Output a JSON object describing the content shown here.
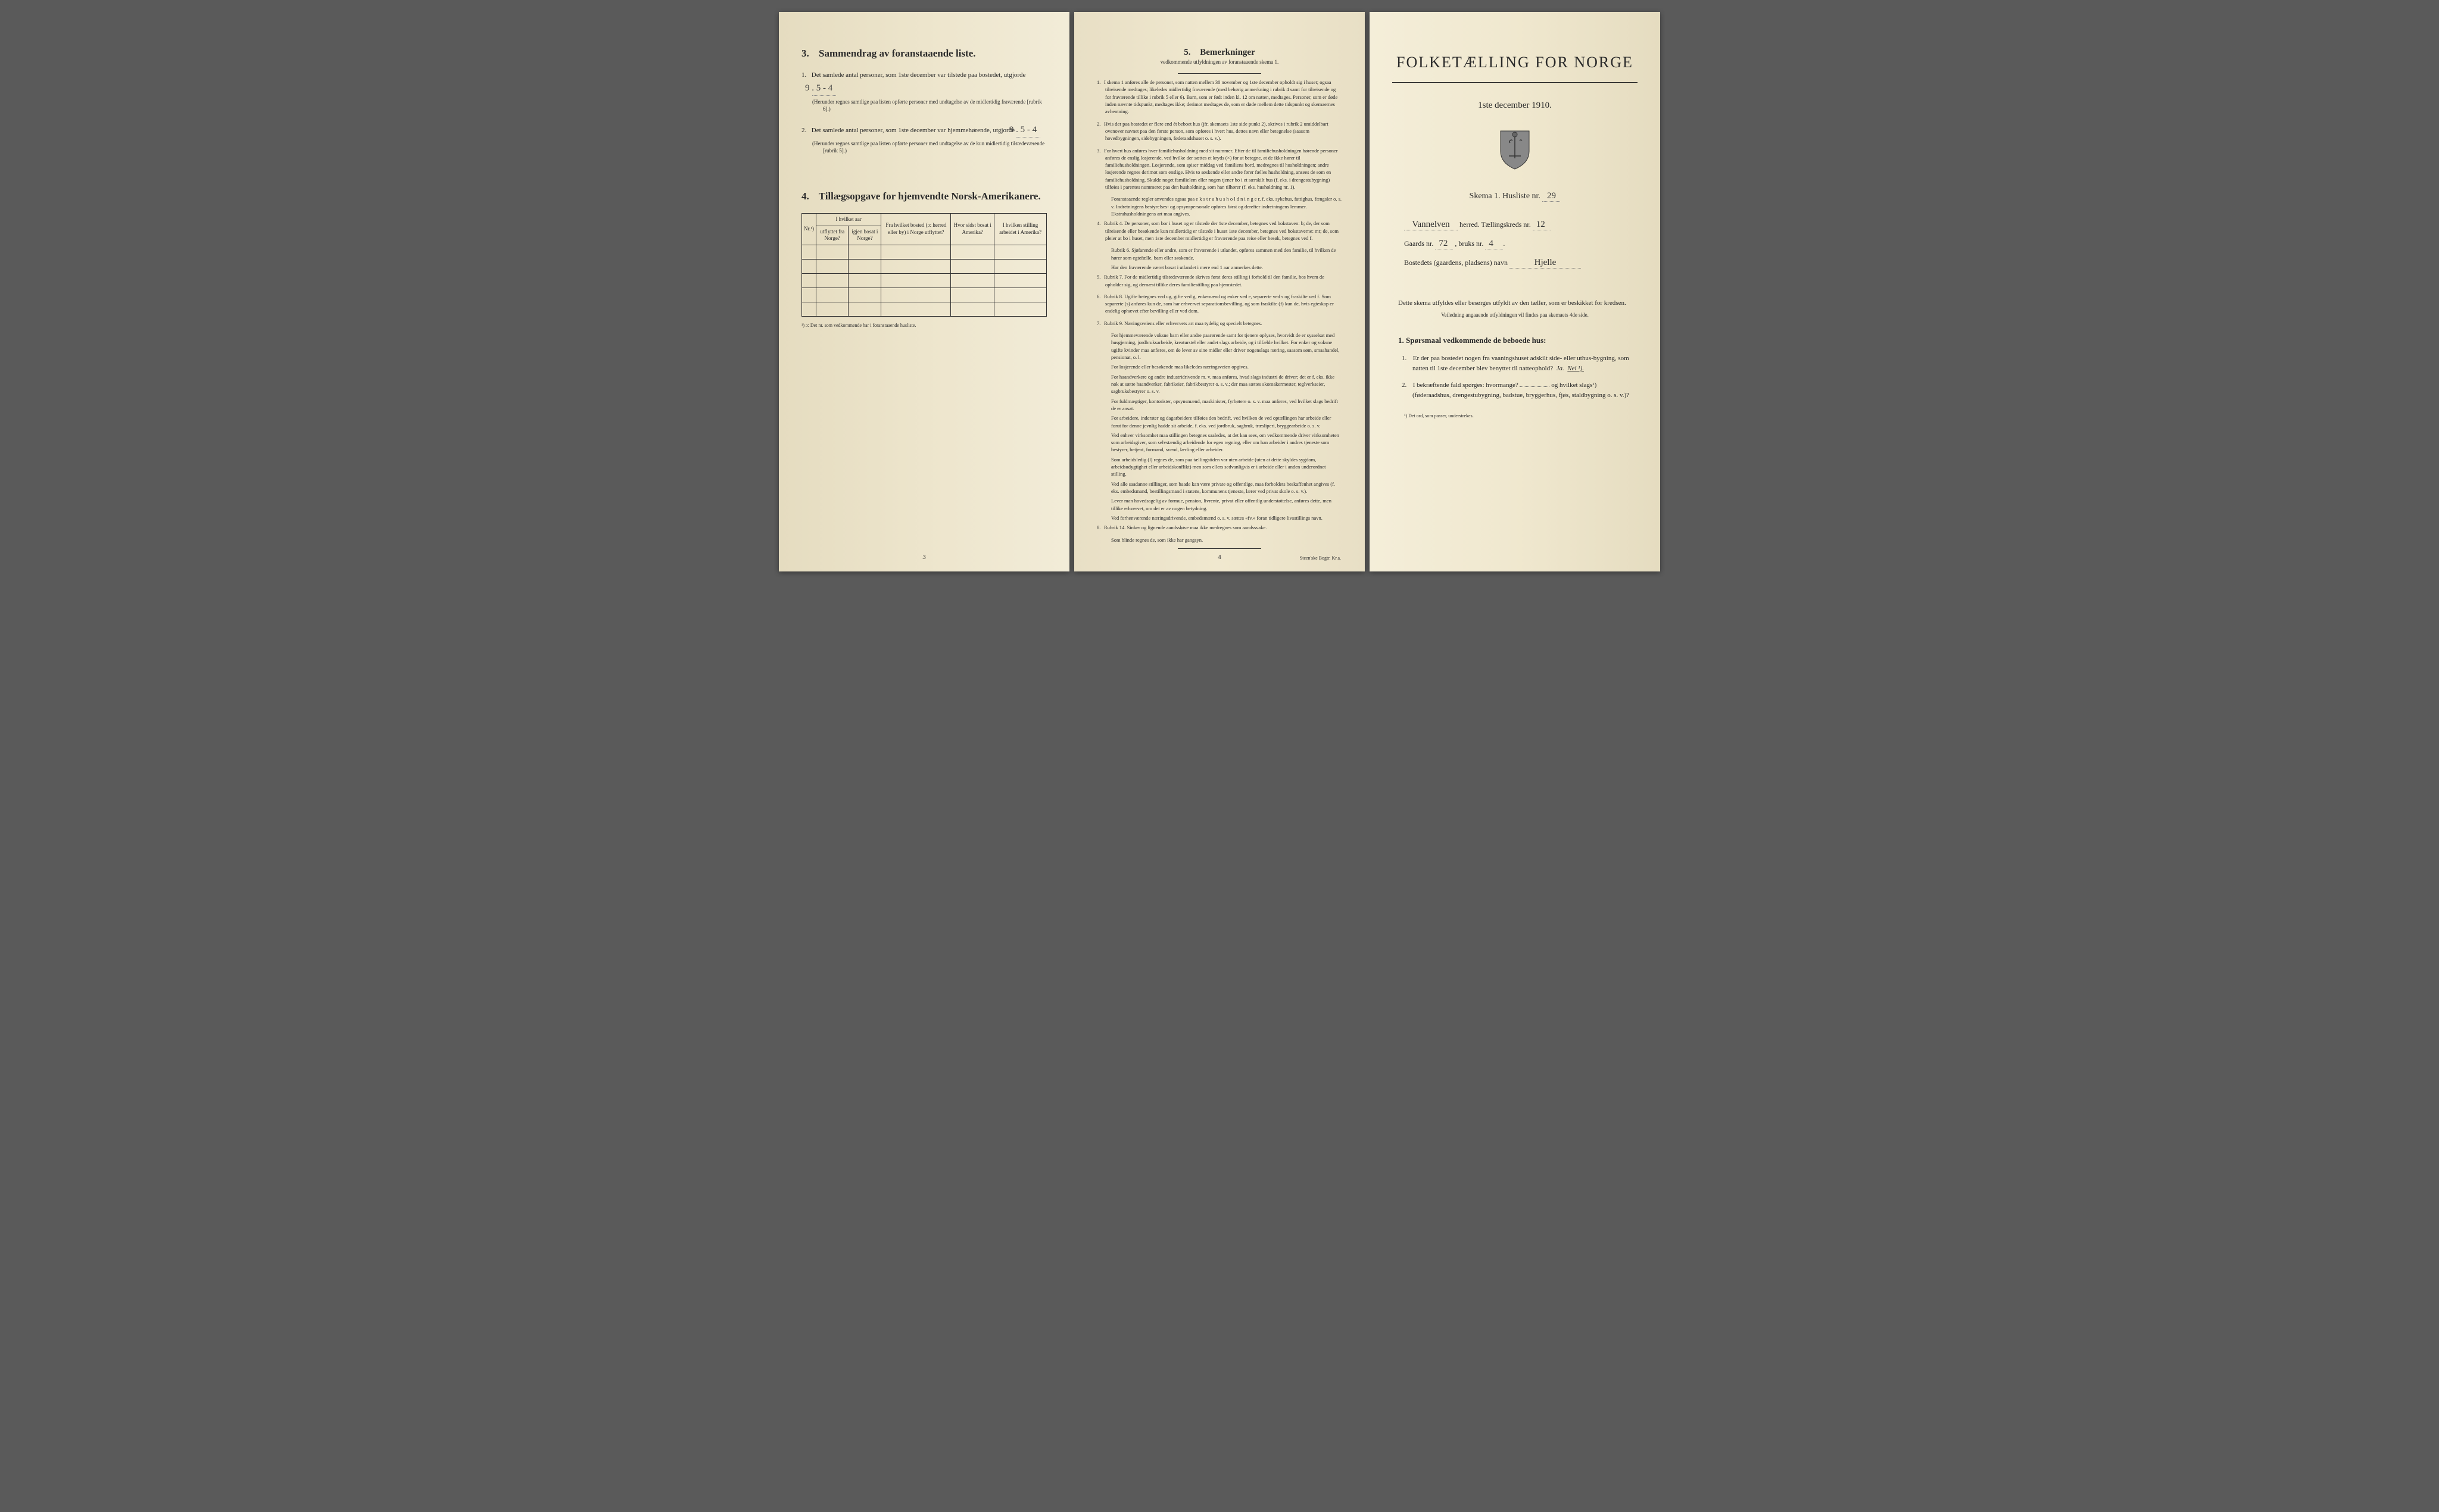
{
  "colors": {
    "paper_left": "#e5dcc0",
    "paper_mid": "#f0e8cf",
    "paper_right": "#f4eed9",
    "text": "#2a2a2a",
    "ink_hand": "#3a3a3a",
    "border": "#333333"
  },
  "left_page": {
    "section3": {
      "number": "3.",
      "title": "Sammendrag av foranstaaende liste.",
      "item1_num": "1.",
      "item1_text": "Det samlede antal personer, som 1ste december var tilstede paa bostedet, utgjorde",
      "item1_value": "9 . 5 - 4",
      "item1_note": "(Herunder regnes samtlige paa listen opførte personer med undtagelse av de midlertidig fraværende [rubrik 6].)",
      "item2_num": "2.",
      "item2_text": "Det samlede antal personer, som 1ste december var hjemmehørende, utgjorde",
      "item2_value": "9 . 5 - 4",
      "item2_note": "(Herunder regnes samtlige paa listen opførte personer med undtagelse av de kun midlertidig tilstedeværende [rubrik 5].)"
    },
    "section4": {
      "number": "4.",
      "title": "Tillægsopgave for hjemvendte Norsk-Amerikanere.",
      "headers": {
        "nr": "Nr.¹)",
        "col1a": "I hvilket aar",
        "col1b": "utflyttet fra Norge?",
        "col1c": "igjen bosat i Norge?",
        "col2": "Fra hvilket bosted (ɔ: herred eller by) i Norge utflyttet?",
        "col3": "Hvor sidst bosat i Amerika?",
        "col4": "I hvilken stilling arbeidet i Amerika?"
      },
      "footnote": "¹) ɔ: Det nr. som vedkommende har i foranstaaende husliste."
    },
    "page_num": "3"
  },
  "middle_page": {
    "section5": {
      "number": "5.",
      "title": "Bemerkninger",
      "subtitle": "vedkommende utfyldningen av foranstaaende skema 1."
    },
    "remarks": [
      {
        "n": "1.",
        "text": "I skema 1 anføres alle de personer, som natten mellem 30 november og 1ste december opholdt sig i huset; ogsaa tilreisende medtages; likeledes midlertidig fraværende (med behørig anmerkning i rubrik 4 samt for tilreisende og for fraværende tillike i rubrik 5 eller 6). Barn, som er født inden kl. 12 om natten, medtages. Personer, som er døde inden nævnte tidspunkt, medtages ikke; derimot medtages de, som er døde mellem dette tidspunkt og skemaernes avhentning."
      },
      {
        "n": "2.",
        "text": "Hvis der paa bostedet er flere end ét beboet hus (jfr. skemaets 1ste side punkt 2), skrives i rubrik 2 umiddelbart ovenover navnet paa den første person, som opføres i hvert hus, dettes navn eller betegnelse (saasom hovedbygningen, sidebygningen, føderaadshuset o. s. v.)."
      },
      {
        "n": "3.",
        "text": "For hvert hus anføres hver familiehusholdning med sit nummer. Efter de til familiehusholdningen hørende personer anføres de enslig losjerende, ved hvilke der sættes et kryds (×) for at betegne, at de ikke hører til familiehusholdningen. Losjerende, som spiser middag ved familiens bord, medregnes til husholdningen; andre losjerende regnes derimot som enslige. Hvis to søskende eller andre fører fælles husholdning, ansees de som en familiehusholdning. Skulde noget familielem eller nogen tjener bo i et særskilt hus (f. eks. i drengestubygning) tilføies i parentes nummeret paa den husholdning, som han tilhører (f. eks. husholdning nr. 1).",
        "sub": [
          "Foranstaaende regler anvendes ogsaa paa e k s t r a h u s h o l d n i n g e r, f. eks. sykehus, fattighus, fængsler o. s. v. Indretningens bestyrelses- og opsynspersonale opføres først og derefter indretningens lemmer. Ekstrahusholdningens art maa angives."
        ]
      },
      {
        "n": "4.",
        "text": "Rubrik 4. De personer, som bor i huset og er tilstede der 1ste december, betegnes ved bokstaven: b; de, der som tilreisende eller besøkende kun midlertidig er tilstede i huset 1ste december, betegnes ved bokstaverne: mt; de, som pleier at bo i huset, men 1ste december midlertidig er fraværende paa reise eller besøk, betegnes ved f.",
        "sub": [
          "Rubrik 6. Sjøfarende eller andre, som er fraværende i utlandet, opføres sammen med den familie, til hvilken de hører som egtefælle, barn eller søskende.",
          "Har den fraværende været bosat i utlandet i mere end 1 aar anmerkes dette."
        ]
      },
      {
        "n": "5.",
        "text": "Rubrik 7. For de midlertidig tilstedeværende skrives først deres stilling i forhold til den familie, hos hvem de opholder sig, og dernæst tillike deres familiestilling paa hjemstedet."
      },
      {
        "n": "6.",
        "text": "Rubrik 8. Ugifte betegnes ved ug, gifte ved g, enkemænd og enker ved e, separerte ved s og fraskilte ved f. Som separerte (s) anføres kun de, som har erhvervet separationsbevilling, og som fraskilte (f) kun de, hvis egteskap er endelig ophævet efter bevilling eller ved dom."
      },
      {
        "n": "7.",
        "text": "Rubrik 9. Næringsveiens eller erhvervets art maa tydelig og specielt betegnes.",
        "sub": [
          "For hjemmeværende voksne barn eller andre paarørende samt for tjenere oplyses, hvorvidt de er sysselsat med husgjerning, jordbruksarbeide, kreaturstel eller andet slags arbeide, og i tilfælde hvilket. For enker og voksne ugifte kvinder maa anføres, om de lever av sine midler eller driver nogenslags næring, saasom søm, smaahandel, pensionat, o. l.",
          "For losjerende eller besøkende maa likeledes næringsveien opgives.",
          "For haandverkere og andre industridrivende m. v. maa anføres, hvad slags industri de driver; det er f. eks. ikke nok at sætte haandverker, fabrikeier, fabrikbestyrer o. s. v.; der maa sættes skomakermester, teglverkseier, sagbruksbestyrer o. s. v.",
          "For fuldmægtiger, kontorister, opsynsmænd, maskinister, fyrbøtere o. s. v. maa anføres, ved hvilket slags bedrift de er ansat.",
          "For arbeidere, inderster og dagarbeidere tilføies den bedrift, ved hvilken de ved optællingen har arbeide eller forut for denne jevnlig hadde sit arbeide, f. eks. ved jordbruk, sagbruk, træsliperi, bryggearbeide o. s. v.",
          "Ved enhver virksomhet maa stillingen betegnes saaledes, at det kan sees, om vedkommende driver virksomheten som arbeidsgiver, som selvstændig arbeidende for egen regning, eller om han arbeider i andres tjeneste som bestyrer, betjent, formand, svend, lærling eller arbeider.",
          "Som arbeidsledig (l) regnes de, som paa tællingstiden var uten arbeide (uten at dette skyldes sygdom, arbeidsudygtighet eller arbeidskonflikt) men som ellers sedvanligvis er i arbeide eller i anden underordnet stilling.",
          "Ved alle saadanne stillinger, som baade kan være private og offentlige, maa forholdets beskaffenhet angives (f. eks. embedsmand, bestillingsmand i statens, kommunens tjeneste, lærer ved privat skole o. s. v.).",
          "Lever man hovedsagelig av formue, pension, livrente, privat eller offentlig understøttelse, anføres dette, men tillike erhvervet, om det er av nogen betydning.",
          "Ved forhenværende næringsdrivende, embedsmænd o. s. v. sættes «fv.» foran tidligere livsstillings navn."
        ]
      },
      {
        "n": "8.",
        "text": "Rubrik 14. Sinker og lignende aandssløve maa ikke medregnes som aandssvake.",
        "sub": [
          "Som blinde regnes de, som ikke har gangsyn."
        ]
      }
    ],
    "page_num": "4",
    "printer": "Steen'ske Bogtr. Kr.a."
  },
  "right_page": {
    "main_title": "FOLKETÆLLING FOR NORGE",
    "date": "1ste december 1910.",
    "skema_label": "Skema 1.  Husliste nr.",
    "skema_nr": "29",
    "herred_value": "Vannelven",
    "herred_label": "herred.  Tællingskreds nr.",
    "kreds_nr": "12",
    "gaards_label": "Gaards nr.",
    "gaards_nr": "72",
    "bruks_label": ", bruks nr.",
    "bruks_nr": "4",
    "bosted_label": "Bostedets (gaardens, pladsens) navn",
    "bosted_value": "Hjelle",
    "instruction": "Dette skema utfyldes eller besørges utfyldt av den tæller, som er beskikket for kredsen.",
    "instruction_sub": "Veiledning angaaende utfyldningen vil findes paa skemaets 4de side.",
    "q_heading_num": "1.",
    "q_heading": "Spørsmaal vedkommende de beboede hus:",
    "q1_num": "1.",
    "q1_text": "Er der paa bostedet nogen fra vaaningshuset adskilt side- eller uthus-bygning, som natten til 1ste december blev benyttet til natteophold?",
    "q1_ja": "Ja.",
    "q1_nei": "Nei ¹).",
    "q2_num": "2.",
    "q2_text_a": "I bekræftende fald spørges: hvormange?",
    "q2_text_b": "og hvilket slags¹) (føderaadshus, drengestubygning, badstue, bryggerhus, fjøs, staldbygning o. s. v.)?",
    "footnote": "¹) Det ord, som passer, understrekes."
  }
}
